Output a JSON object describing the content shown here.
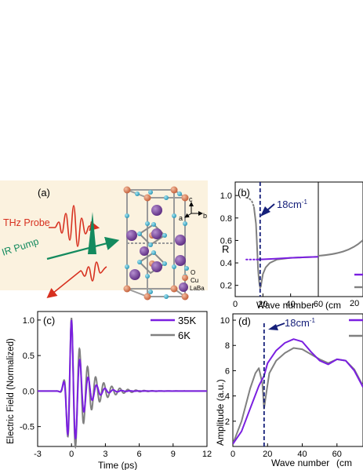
{
  "panel_a": {
    "label": "(a)",
    "probe_label": "THz Probe",
    "pump_label": "IR Pump",
    "axes": {
      "c": "c",
      "a": "a",
      "b": "b"
    },
    "legend": [
      "O",
      "Cu",
      "LaBa"
    ],
    "colors": {
      "probe": "#d7301f",
      "pump": "#138a5e",
      "La": "#7b3f9e",
      "Cu": "#e07b54",
      "O": "#3fb6d3",
      "bg": "#fbf2df"
    }
  },
  "chart_data": [
    {
      "panel": "(b)",
      "type": "line",
      "ylabel": "R",
      "xlabel": "Wave number",
      "xlabel_suffix": "(cm",
      "annotation": "18cm",
      "annotation_sup": "-1",
      "xlim": [
        0,
        60
      ],
      "ylim": [
        0.1,
        1.12
      ],
      "xticks": [
        0,
        20,
        40,
        60
      ],
      "yticks": [
        0.2,
        0.4,
        0.6,
        0.8,
        1.0
      ],
      "marker_x": 18,
      "right_tick_fragment": "20",
      "series": [
        {
          "color": "#808080",
          "dotted_x": [
            8,
            10,
            12,
            13.5
          ],
          "dotted_y": [
            0.98,
            0.975,
            0.95,
            0.9
          ],
          "x": [
            13.5,
            14,
            15,
            15.5,
            16,
            16.5,
            17,
            17.5,
            18,
            18.5,
            19,
            20,
            22,
            25,
            30,
            40,
            50,
            60
          ],
          "y": [
            0.9,
            0.85,
            0.75,
            0.62,
            0.48,
            0.35,
            0.27,
            0.21,
            0.18,
            0.19,
            0.23,
            0.3,
            0.36,
            0.4,
            0.43,
            0.445,
            0.45,
            0.455
          ]
        },
        {
          "color": "#7a1fe0",
          "dotted_x": [
            8,
            12,
            15
          ],
          "dotted_y": [
            0.43,
            0.43,
            0.43
          ],
          "x": [
            15,
            20,
            30,
            40,
            50,
            60
          ],
          "y": [
            0.43,
            0.432,
            0.438,
            0.445,
            0.45,
            0.455
          ]
        }
      ]
    },
    {
      "panel": "(c)",
      "type": "line",
      "xlabel": "Time (ps)",
      "ylabel": "Electric Field (Normalized)",
      "xlim": [
        -3,
        12
      ],
      "ylim": [
        -0.78,
        1.12
      ],
      "xticks": [
        -3,
        0,
        3,
        6,
        9,
        12
      ],
      "yticks": [
        -0.5,
        0.0,
        0.5,
        1.0
      ],
      "series": [
        {
          "name": "35K",
          "color": "#7a1fe0"
        },
        {
          "name": "6K",
          "color": "#808080"
        }
      ],
      "pulse_params": {
        "35K": {
          "amp": 1.0,
          "freq": 1.35,
          "tau": 0.9,
          "onset_tau": 0.35
        },
        "6K": {
          "amp": 1.03,
          "freq": 1.4,
          "tau": 1.3,
          "onset_tau": 0.35
        }
      }
    },
    {
      "panel": "(d)",
      "type": "line",
      "xlabel": "Wave number",
      "xlabel_suffix": "(cm",
      "ylabel": "Amplitude (a.u.)",
      "annotation": "18cm",
      "annotation_sup": "-1",
      "xlim": [
        0,
        75
      ],
      "ylim": [
        0,
        10.5
      ],
      "xticks": [
        0,
        20,
        40,
        60
      ],
      "yticks": [
        2,
        4,
        6,
        8,
        10
      ],
      "marker_x": 18,
      "series": [
        {
          "color": "#7a1fe0",
          "x": [
            0,
            5,
            10,
            15,
            18,
            20,
            25,
            30,
            35,
            40,
            45,
            50,
            55,
            60,
            65,
            70,
            75
          ],
          "y": [
            0.2,
            1.2,
            3.0,
            4.8,
            5.6,
            6.6,
            7.6,
            8.2,
            8.5,
            8.3,
            7.5,
            6.8,
            6.5,
            6.9,
            6.8,
            6.0,
            4.7
          ]
        },
        {
          "color": "#808080",
          "x": [
            0,
            5,
            10,
            13,
            15,
            17,
            18,
            19,
            21,
            25,
            30,
            35,
            40,
            45,
            50,
            55,
            60,
            65,
            70,
            75
          ],
          "y": [
            0.2,
            2.0,
            4.6,
            5.8,
            6.2,
            5.0,
            3.0,
            4.0,
            5.8,
            6.8,
            7.4,
            7.8,
            7.7,
            7.3,
            6.9,
            6.6,
            6.9,
            6.8,
            6.1,
            4.8
          ]
        }
      ]
    }
  ]
}
